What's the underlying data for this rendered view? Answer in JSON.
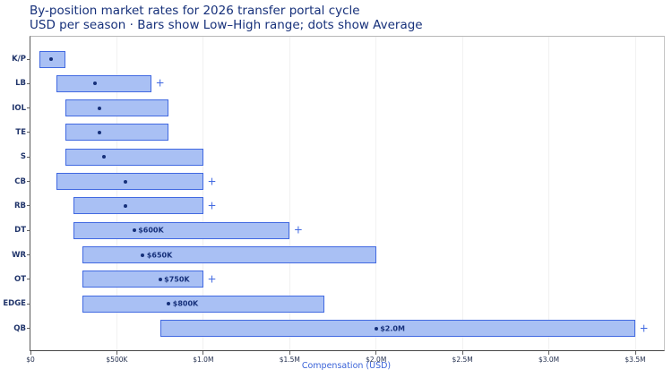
{
  "header": {
    "title": "By-position market rates for 2026 transfer portal cycle",
    "subtitle": "USD per season · Bars show Low–High range; dots show Average"
  },
  "chart_data": {
    "type": "bar",
    "orientation": "horizontal",
    "subtype": "low-high range bars with average dot markers",
    "xlabel": "Compensation (USD)",
    "xlim": [
      0,
      3660000
    ],
    "grid": "vertical gridlines every $500K",
    "legend_position": "none",
    "xticks": [
      {
        "value": 0,
        "label": "$0"
      },
      {
        "value": 500000,
        "label": "$500K"
      },
      {
        "value": 1000000,
        "label": "$1.0M"
      },
      {
        "value": 1500000,
        "label": "$1.5M"
      },
      {
        "value": 2000000,
        "label": "$2.0M"
      },
      {
        "value": 2500000,
        "label": "$2.5M"
      },
      {
        "value": 3000000,
        "label": "$3.0M"
      },
      {
        "value": 3500000,
        "label": "$3.5M"
      }
    ],
    "rows": [
      {
        "position": "K/P",
        "low": 50000,
        "high": 200000,
        "avg": 120000,
        "avg_label": null,
        "plus_marker": false
      },
      {
        "position": "LB",
        "low": 150000,
        "high": 700000,
        "avg": 375000,
        "avg_label": null,
        "plus_marker": true
      },
      {
        "position": "IOL",
        "low": 200000,
        "high": 800000,
        "avg": 400000,
        "avg_label": null,
        "plus_marker": false
      },
      {
        "position": "TE",
        "low": 200000,
        "high": 800000,
        "avg": 400000,
        "avg_label": null,
        "plus_marker": false
      },
      {
        "position": "S",
        "low": 200000,
        "high": 1000000,
        "avg": 425000,
        "avg_label": null,
        "plus_marker": false
      },
      {
        "position": "CB",
        "low": 150000,
        "high": 1000000,
        "avg": 550000,
        "avg_label": null,
        "plus_marker": true
      },
      {
        "position": "RB",
        "low": 250000,
        "high": 1000000,
        "avg": 550000,
        "avg_label": null,
        "plus_marker": true
      },
      {
        "position": "DT",
        "low": 250000,
        "high": 1500000,
        "avg": 600000,
        "avg_label": "$600K",
        "plus_marker": true
      },
      {
        "position": "WR",
        "low": 300000,
        "high": 2000000,
        "avg": 650000,
        "avg_label": "$650K",
        "plus_marker": false
      },
      {
        "position": "OT",
        "low": 300000,
        "high": 1000000,
        "avg": 750000,
        "avg_label": "$750K",
        "plus_marker": true
      },
      {
        "position": "EDGE",
        "low": 300000,
        "high": 1700000,
        "avg": 800000,
        "avg_label": "$800K",
        "plus_marker": false
      },
      {
        "position": "QB",
        "low": 750000,
        "high": 3500000,
        "avg": 2000000,
        "avg_label": "$2.0M",
        "plus_marker": true
      }
    ],
    "plus_marker_offset_usd": 50000
  },
  "colors": {
    "bar_fill": "#a9c0f4",
    "bar_border": "#4169e1",
    "avg_dot": "#16307a",
    "avg_label": "#16307a",
    "plus_marker": "#4169e1",
    "title": "#16307a",
    "y_label": "#21356b",
    "x_tick_label": "#24304f",
    "x_axis_label": "#3a63d8",
    "gridline": "#f1f1f1"
  }
}
